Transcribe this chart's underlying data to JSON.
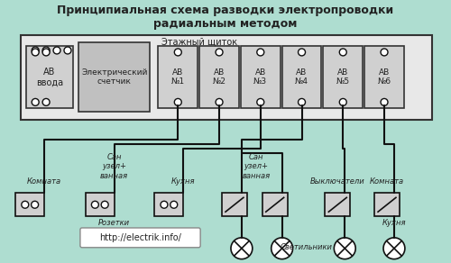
{
  "title": "Принципиальная схема разводки электропроводки\nрадиальным методом",
  "bg_color": "#aeddd0",
  "panel_bg": "#e8e8e8",
  "panel_border": "#333333",
  "component_bg": "#d0d0d0",
  "text_color": "#222222",
  "line_color": "#111111",
  "url_text": "http://electrik.info/",
  "panel_label": "Этажный щиток",
  "av_vvoda_label": "АВ\nввода",
  "counter_label": "Электрический\nсчетчик",
  "av_labels": [
    "АВ\n№1",
    "АВ\n№2",
    "АВ\n№3",
    "АВ\n№4",
    "АВ\n№5",
    "АВ\n№6"
  ],
  "bottom_labels_left": [
    "Комната",
    "Сан\nузел+\nванная",
    "Кухня"
  ],
  "bottom_labels_right": [
    "Сан\nузел+\nванная",
    "Выключатели",
    "Комната"
  ],
  "socket_label": "Розетки",
  "lights_label": "Светильники",
  "kitchen_label": "Кухня"
}
